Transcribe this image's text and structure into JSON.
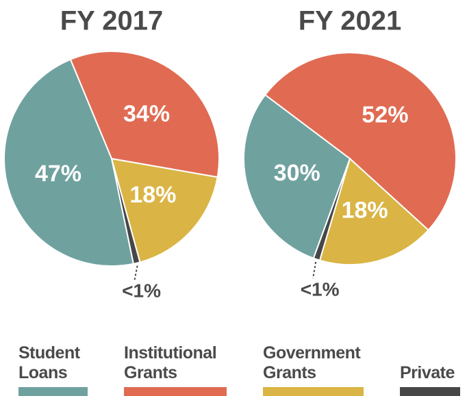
{
  "chart_data": [
    {
      "type": "pie",
      "title": "FY 2017",
      "categories": [
        "Student Loans",
        "Institutional Grants",
        "Government Grants",
        "Private"
      ],
      "values": [
        47,
        34,
        18,
        1
      ],
      "value_labels": [
        "47%",
        "34%",
        "18%",
        "<1%"
      ],
      "colors": [
        "#6fa19f",
        "#e06b52",
        "#dab545",
        "#474747"
      ]
    },
    {
      "type": "pie",
      "title": "FY 2021",
      "categories": [
        "Student Loans",
        "Institutional Grants",
        "Government Grants",
        "Private"
      ],
      "values": [
        30,
        52,
        18,
        1
      ],
      "value_labels": [
        "30%",
        "52%",
        "18%",
        "<1%"
      ],
      "colors": [
        "#6fa19f",
        "#e06b52",
        "#dab545",
        "#474747"
      ]
    }
  ]
}
